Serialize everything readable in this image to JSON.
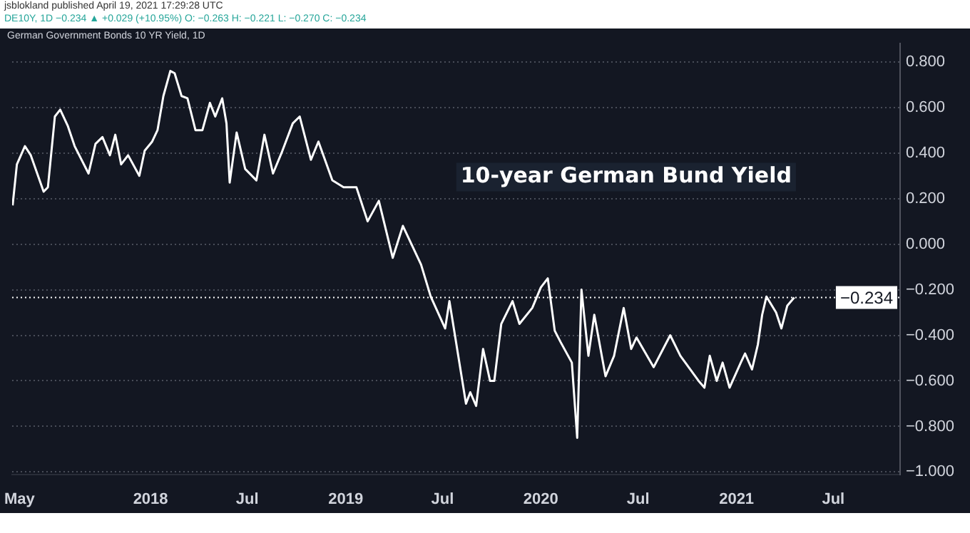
{
  "chart_data": {
    "type": "line",
    "title": "German Government Bonds 10 YR Yield, 1D",
    "subtitle": "jsblokland published April 19, 2021 17:29:28 UTC",
    "annotations": [
      "10-year German Bund Yield",
      "DE10Y, 1D  −0.234 ▲ +0.029 (+10.95%)  O: −0.263  H: −0.221  L: −0.270  C: −0.234"
    ],
    "x": [
      "2017-04-18",
      "2017-04-26",
      "2017-05-11",
      "2017-05-22",
      "2017-06-15",
      "2017-06-23",
      "2017-07-06",
      "2017-07-16",
      "2017-07-30",
      "2017-08-12",
      "2017-09-07",
      "2017-09-20",
      "2017-10-03",
      "2017-10-17",
      "2017-10-27",
      "2017-11-07",
      "2017-11-20",
      "2017-12-11",
      "2017-12-21",
      "2018-01-04",
      "2018-01-14",
      "2018-01-25",
      "2018-02-07",
      "2018-02-15",
      "2018-02-28",
      "2018-03-11",
      "2018-03-26",
      "2018-04-08",
      "2018-04-22",
      "2018-05-02",
      "2018-05-15",
      "2018-05-23",
      "2018-05-29",
      "2018-06-11",
      "2018-06-27",
      "2018-07-18",
      "2018-08-02",
      "2018-08-18",
      "2018-09-03",
      "2018-09-24",
      "2018-10-07",
      "2018-10-28",
      "2018-11-11",
      "2018-12-07",
      "2018-12-28",
      "2019-01-21",
      "2019-02-11",
      "2019-03-04",
      "2019-03-30",
      "2019-04-18",
      "2019-05-22",
      "2019-06-09",
      "2019-07-06",
      "2019-07-14",
      "2019-08-14",
      "2019-08-22",
      "2019-09-02",
      "2019-09-15",
      "2019-09-28",
      "2019-10-06",
      "2019-10-19",
      "2019-11-09",
      "2019-11-22",
      "2019-12-16",
      "2020-01-01",
      "2020-01-14",
      "2020-01-27",
      "2020-02-07",
      "2020-02-28",
      "2020-03-09",
      "2020-03-17",
      "2020-03-30",
      "2020-04-10",
      "2020-05-01",
      "2020-05-17",
      "2020-06-04",
      "2020-06-18",
      "2020-06-28",
      "2020-07-30",
      "2020-08-30",
      "2020-09-18",
      "2020-10-22",
      "2020-11-02",
      "2020-11-12",
      "2020-11-25",
      "2020-12-06",
      "2020-12-19",
      "2021-01-09",
      "2021-01-17",
      "2021-01-30",
      "2021-02-10",
      "2021-02-18",
      "2021-02-26",
      "2021-03-16",
      "2021-03-26",
      "2021-04-06",
      "2021-04-19"
    ],
    "series": [
      {
        "color": "#ffffff",
        "values": [
          0.17,
          0.35,
          0.43,
          0.39,
          0.23,
          0.25,
          0.56,
          0.59,
          0.52,
          0.43,
          0.31,
          0.44,
          0.47,
          0.39,
          0.48,
          0.35,
          0.39,
          0.3,
          0.41,
          0.45,
          0.5,
          0.65,
          0.76,
          0.75,
          0.65,
          0.64,
          0.5,
          0.5,
          0.62,
          0.56,
          0.64,
          0.53,
          0.27,
          0.49,
          0.33,
          0.28,
          0.48,
          0.31,
          0.4,
          0.53,
          0.56,
          0.37,
          0.45,
          0.28,
          0.25,
          0.25,
          0.1,
          0.19,
          -0.06,
          0.08,
          -0.09,
          -0.23,
          -0.37,
          -0.25,
          -0.7,
          -0.65,
          -0.71,
          -0.46,
          -0.6,
          -0.6,
          -0.35,
          -0.25,
          -0.35,
          -0.28,
          -0.19,
          -0.15,
          -0.38,
          -0.43,
          -0.52,
          -0.85,
          -0.2,
          -0.49,
          -0.31,
          -0.58,
          -0.49,
          -0.28,
          -0.46,
          -0.41,
          -0.54,
          -0.4,
          -0.49,
          -0.6,
          -0.63,
          -0.49,
          -0.6,
          -0.52,
          -0.63,
          -0.52,
          -0.48,
          -0.55,
          -0.44,
          -0.31,
          -0.23,
          -0.3,
          -0.37,
          -0.27,
          -0.234
        ]
      }
    ],
    "xlim": [
      "2017-04-17",
      "2021-11-03"
    ],
    "xticks": [
      {
        "value": "2017-05-01",
        "label": "May"
      },
      {
        "value": "2018-01-01",
        "label": "2018"
      },
      {
        "value": "2018-07-01",
        "label": "Jul"
      },
      {
        "value": "2019-01-01",
        "label": "2019"
      },
      {
        "value": "2019-07-01",
        "label": "Jul"
      },
      {
        "value": "2020-01-01",
        "label": "2020"
      },
      {
        "value": "2020-07-01",
        "label": "Jul"
      },
      {
        "value": "2021-01-01",
        "label": "2021"
      },
      {
        "value": "2021-07-01",
        "label": "Jul"
      }
    ],
    "ylim": [
      -1.01,
      0.88
    ],
    "yticks": [
      {
        "value": 0.8,
        "label": "0.800"
      },
      {
        "value": 0.6,
        "label": "0.600"
      },
      {
        "value": 0.4,
        "label": "0.400"
      },
      {
        "value": 0.2,
        "label": "0.200"
      },
      {
        "value": 0,
        "label": "0.000"
      },
      {
        "value": -0.2,
        "label": "−0.200"
      },
      {
        "value": -0.4,
        "label": "−0.400"
      },
      {
        "value": -0.6,
        "label": "−0.600"
      },
      {
        "value": -0.8,
        "label": "−0.800"
      },
      {
        "value": -1,
        "label": "−1.000"
      }
    ],
    "ref_lines": [
      {
        "axis": "y",
        "value": -0.234,
        "label": "−0.234",
        "color": "#ffffff",
        "line_style": "dotted"
      }
    ],
    "grid": "y",
    "marker": "none",
    "line_style": "solid"
  }
}
